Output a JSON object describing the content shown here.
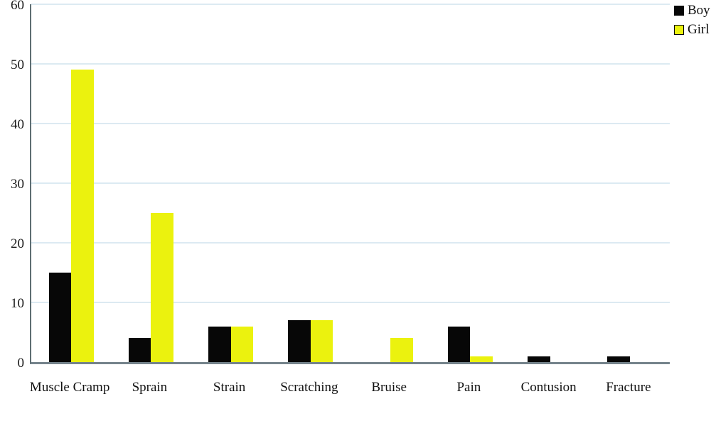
{
  "chart_data": {
    "type": "bar",
    "title": "",
    "xlabel": "",
    "ylabel": "",
    "categories": [
      "Muscle Cramp",
      "Sprain",
      "Strain",
      "Scratching",
      "Bruise",
      "Pain",
      "Contusion",
      "Fracture"
    ],
    "series": [
      {
        "name": "Boy",
        "color": "#070707",
        "values": [
          15,
          4,
          6,
          7,
          0,
          6,
          1,
          1
        ]
      },
      {
        "name": "Girl",
        "color": "#ebf20e",
        "values": [
          49,
          25,
          6,
          7,
          4,
          1,
          0,
          0
        ]
      }
    ],
    "ylim": [
      0,
      60
    ],
    "yticks": [
      0,
      10,
      20,
      30,
      40,
      50,
      60
    ],
    "grid": true,
    "gridline_color": "#dceaf2",
    "axis_color": "#6b7a80",
    "legend_position": "top-right"
  }
}
